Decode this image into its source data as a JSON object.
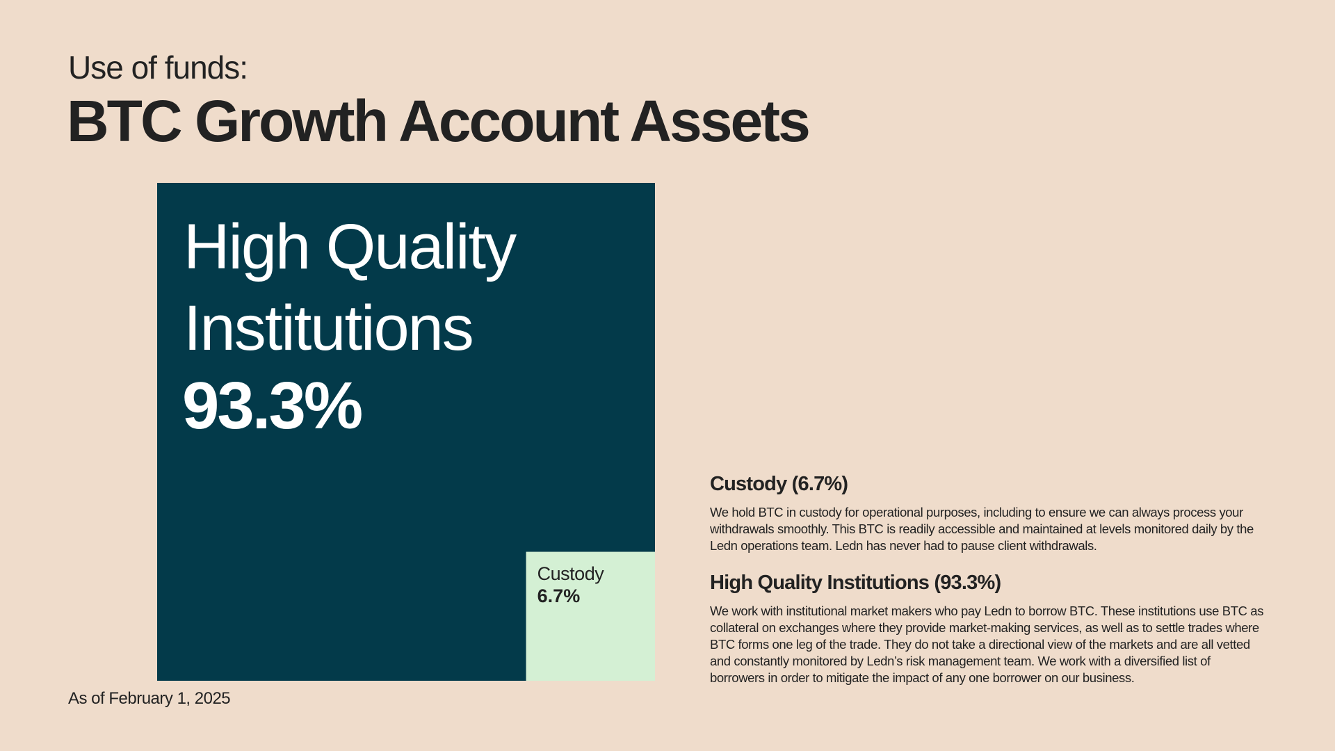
{
  "chart_data": {
    "type": "treemap",
    "kicker": "Use of funds:",
    "title": "BTC Growth Account Assets",
    "categories": [
      "High Quality Institutions",
      "Custody"
    ],
    "values": [
      93.3,
      6.7
    ],
    "value_labels": [
      "93.3%",
      "6.7%"
    ],
    "colors": [
      "#033a4a",
      "#d4f0d4"
    ],
    "text_colors": [
      "#ffffff",
      "#222222"
    ],
    "footnote": "As of February 1, 2025",
    "descriptions": [
      {
        "heading": "Custody (6.7%)",
        "text": "We hold BTC in custody for operational purposes, including to ensure we can always process your withdrawals smoothly. This BTC is readily accessible and maintained at levels monitored daily by the Ledn operations team. Ledn has never had to pause client withdrawals."
      },
      {
        "heading": "High Quality Institutions (93.3%)",
        "text": "We work with institutional market makers who pay Ledn to borrow BTC. These institutions use BTC as collateral on exchanges where they provide market-making services, as well as to settle trades where BTC forms one leg of the trade. They do not take a directional view of the markets and are all vetted and constantly monitored by Ledn’s risk management team. We work with a diversified list of borrowers in order to mitigate the impact of any one borrower on our business."
      }
    ]
  }
}
